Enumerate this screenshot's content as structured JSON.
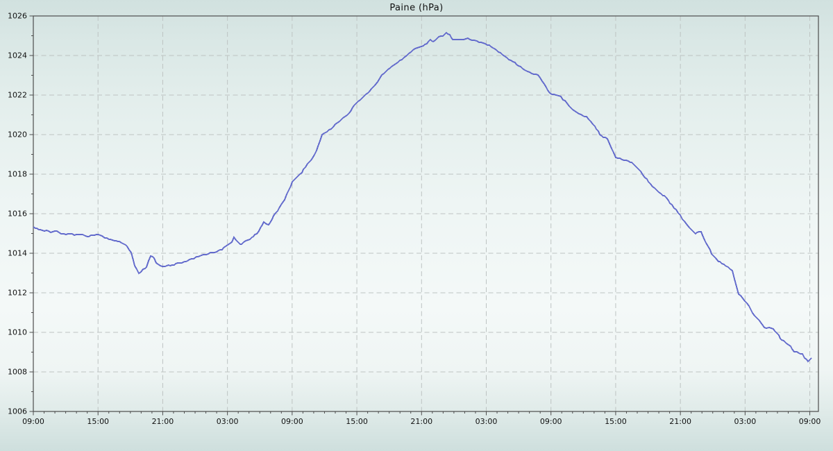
{
  "chart_data": {
    "type": "line",
    "title": "Paine (hPa)",
    "legend": "none",
    "grid": {
      "show": true,
      "style": "dashed",
      "color": "#bdc3c2"
    },
    "frame_color": "#4c4c4c",
    "text_color": "#101010",
    "background_stops": [
      [
        "0%",
        "#d1e1df"
      ],
      [
        "8%",
        "#d9e7e5"
      ],
      [
        "22%",
        "#e3eeec"
      ],
      [
        "45%",
        "#eef5f4"
      ],
      [
        "68%",
        "#f4f9f8"
      ],
      [
        "82%",
        "#eff5f4"
      ],
      [
        "91%",
        "#e0ebe9"
      ],
      [
        "100%",
        "#cedfdd"
      ]
    ],
    "x_axis": {
      "kind": "time-of-day over 3 days",
      "span_hours": 72.8,
      "major_tick_hours": 6,
      "minor_tick_hours": 1,
      "tick_labels": [
        "09:00",
        "15:00",
        "21:00",
        "03:00",
        "09:00",
        "15:00",
        "21:00",
        "03:00",
        "09:00",
        "15:00",
        "21:00",
        "03:00",
        "09:00"
      ]
    },
    "y_axis": {
      "min": 1006,
      "max": 1026,
      "major_step": 2,
      "minor_step": 1,
      "tick_labels": [
        "1006",
        "1008",
        "1010",
        "1012",
        "1014",
        "1016",
        "1018",
        "1020",
        "1022",
        "1024",
        "1026"
      ]
    },
    "series": [
      {
        "name": "Paine",
        "color": "#636bcc",
        "points_format": "[hours since first 09:00, hPa]",
        "points": [
          [
            0,
            1015.35
          ],
          [
            0.5,
            1015.2
          ],
          [
            1,
            1015.15
          ],
          [
            1.6,
            1015.05
          ],
          [
            2.2,
            1015.1
          ],
          [
            2.8,
            1014.95
          ],
          [
            3.4,
            1015.0
          ],
          [
            3.8,
            1014.9
          ],
          [
            4.4,
            1014.95
          ],
          [
            5,
            1014.85
          ],
          [
            5.5,
            1014.9
          ],
          [
            6.2,
            1014.95
          ],
          [
            6.6,
            1014.8
          ],
          [
            7,
            1014.7
          ],
          [
            7.5,
            1014.65
          ],
          [
            8,
            1014.6
          ],
          [
            8.4,
            1014.5
          ],
          [
            8.7,
            1014.35
          ],
          [
            9.1,
            1014.0
          ],
          [
            9.4,
            1013.4
          ],
          [
            9.8,
            1012.95
          ],
          [
            10.2,
            1013.15
          ],
          [
            10.5,
            1013.3
          ],
          [
            10.9,
            1013.9
          ],
          [
            11.2,
            1013.75
          ],
          [
            11.4,
            1013.55
          ],
          [
            11.8,
            1013.35
          ],
          [
            12.2,
            1013.35
          ],
          [
            12.7,
            1013.4
          ],
          [
            13.4,
            1013.5
          ],
          [
            14,
            1013.55
          ],
          [
            14.3,
            1013.6
          ],
          [
            15.1,
            1013.8
          ],
          [
            15.6,
            1013.9
          ],
          [
            16.2,
            1014.0
          ],
          [
            17,
            1014.1
          ],
          [
            17.5,
            1014.2
          ],
          [
            18,
            1014.4
          ],
          [
            18.4,
            1014.6
          ],
          [
            18.6,
            1014.8
          ],
          [
            19,
            1014.55
          ],
          [
            19.3,
            1014.45
          ],
          [
            19.7,
            1014.6
          ],
          [
            20.1,
            1014.7
          ],
          [
            20.4,
            1014.85
          ],
          [
            20.7,
            1015.0
          ],
          [
            21.1,
            1015.3
          ],
          [
            21.4,
            1015.55
          ],
          [
            21.8,
            1015.4
          ],
          [
            22.3,
            1015.9
          ],
          [
            22.8,
            1016.3
          ],
          [
            23.3,
            1016.7
          ],
          [
            23.7,
            1017.2
          ],
          [
            24,
            1017.6
          ],
          [
            24.5,
            1017.9
          ],
          [
            24.9,
            1018.1
          ],
          [
            25.4,
            1018.5
          ],
          [
            25.9,
            1018.8
          ],
          [
            26.4,
            1019.4
          ],
          [
            26.8,
            1020.0
          ],
          [
            27.2,
            1020.15
          ],
          [
            27.6,
            1020.3
          ],
          [
            28,
            1020.5
          ],
          [
            28.4,
            1020.7
          ],
          [
            28.9,
            1020.9
          ],
          [
            29.3,
            1021.1
          ],
          [
            29.6,
            1021.35
          ],
          [
            29.9,
            1021.6
          ],
          [
            30.5,
            1021.85
          ],
          [
            31,
            1022.1
          ],
          [
            31.7,
            1022.5
          ],
          [
            32.3,
            1023.0
          ],
          [
            32.9,
            1023.3
          ],
          [
            33.4,
            1023.5
          ],
          [
            33.8,
            1023.65
          ],
          [
            34.2,
            1023.8
          ],
          [
            34.6,
            1024.0
          ],
          [
            35.2,
            1024.3
          ],
          [
            35.6,
            1024.4
          ],
          [
            36,
            1024.45
          ],
          [
            36.5,
            1024.6
          ],
          [
            36.8,
            1024.8
          ],
          [
            37.1,
            1024.7
          ],
          [
            37.6,
            1024.95
          ],
          [
            38,
            1025.0
          ],
          [
            38.3,
            1025.15
          ],
          [
            38.6,
            1025.05
          ],
          [
            38.9,
            1024.8
          ],
          [
            39.5,
            1024.8
          ],
          [
            40.3,
            1024.85
          ],
          [
            40.9,
            1024.75
          ],
          [
            41.5,
            1024.65
          ],
          [
            42.1,
            1024.55
          ],
          [
            42.6,
            1024.4
          ],
          [
            43.1,
            1024.2
          ],
          [
            44.1,
            1023.8
          ],
          [
            45,
            1023.5
          ],
          [
            45.8,
            1023.2
          ],
          [
            46.4,
            1023.05
          ],
          [
            46.8,
            1023.0
          ],
          [
            47.2,
            1022.7
          ],
          [
            47.9,
            1022.1
          ],
          [
            48.7,
            1022.0
          ],
          [
            49.3,
            1021.7
          ],
          [
            49.7,
            1021.4
          ],
          [
            50.2,
            1021.2
          ],
          [
            50.6,
            1021.05
          ],
          [
            51.3,
            1020.9
          ],
          [
            51.9,
            1020.5
          ],
          [
            52.4,
            1020.15
          ],
          [
            52.7,
            1019.9
          ],
          [
            53.2,
            1019.8
          ],
          [
            53.6,
            1019.3
          ],
          [
            54,
            1018.85
          ],
          [
            54.8,
            1018.7
          ],
          [
            55.5,
            1018.6
          ],
          [
            56.1,
            1018.25
          ],
          [
            56.7,
            1017.85
          ],
          [
            57.4,
            1017.4
          ],
          [
            58,
            1017.1
          ],
          [
            58.7,
            1016.8
          ],
          [
            59.4,
            1016.3
          ],
          [
            60,
            1015.9
          ],
          [
            60.8,
            1015.3
          ],
          [
            61.4,
            1015.0
          ],
          [
            61.9,
            1015.1
          ],
          [
            62.4,
            1014.5
          ],
          [
            62.9,
            1014.0
          ],
          [
            63.5,
            1013.6
          ],
          [
            64.2,
            1013.4
          ],
          [
            64.8,
            1013.1
          ],
          [
            65.4,
            1011.95
          ],
          [
            66,
            1011.6
          ],
          [
            66.7,
            1011.0
          ],
          [
            67.3,
            1010.6
          ],
          [
            67.8,
            1010.25
          ],
          [
            68.6,
            1010.2
          ],
          [
            69.1,
            1009.85
          ],
          [
            69.4,
            1009.6
          ],
          [
            69.7,
            1009.5
          ],
          [
            70.2,
            1009.3
          ],
          [
            70.55,
            1009.0
          ],
          [
            71,
            1008.95
          ],
          [
            71.3,
            1008.9
          ],
          [
            71.5,
            1008.7
          ],
          [
            71.85,
            1008.55
          ],
          [
            72.15,
            1008.7
          ]
        ]
      }
    ]
  }
}
